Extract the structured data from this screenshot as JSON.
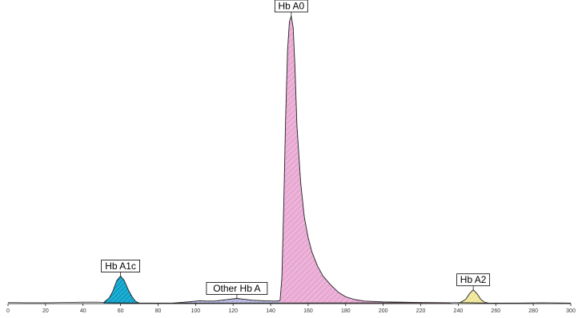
{
  "chart_data": {
    "type": "area",
    "title": "",
    "xlabel": "",
    "ylabel": "",
    "xlim": [
      0,
      300
    ],
    "ylim": [
      0,
      100
    ],
    "grid": false,
    "x_ticks": [
      0,
      20,
      40,
      60,
      80,
      100,
      120,
      140,
      160,
      180,
      200,
      220,
      240,
      260,
      280,
      300
    ],
    "series": [
      {
        "name": "Hb A1c",
        "color": "#1ab0d8",
        "points": [
          [
            51,
            0.4
          ],
          [
            54,
            2
          ],
          [
            56,
            4.5
          ],
          [
            58,
            8
          ],
          [
            60,
            9.6
          ],
          [
            62,
            8
          ],
          [
            64,
            5
          ],
          [
            66,
            2.5
          ],
          [
            68,
            0.8
          ],
          [
            70,
            0.2
          ]
        ]
      },
      {
        "name": "Other Hb A",
        "color": "#c0c0e6",
        "points": [
          [
            88,
            0.2
          ],
          [
            96,
            0.6
          ],
          [
            102,
            1.0
          ],
          [
            106,
            0.9
          ],
          [
            110,
            0.9
          ],
          [
            114,
            1.2
          ],
          [
            118,
            1.5
          ],
          [
            122,
            1.8
          ],
          [
            126,
            1.5
          ],
          [
            130,
            1.2
          ],
          [
            136,
            1.0
          ],
          [
            142,
            0.9
          ],
          [
            145,
            1.0
          ]
        ]
      },
      {
        "name": "Hb A0",
        "color": "#e8a8d2",
        "points": [
          [
            145,
            1.0
          ],
          [
            146,
            9
          ],
          [
            147,
            35
          ],
          [
            148,
            65
          ],
          [
            149,
            88
          ],
          [
            150,
            98
          ],
          [
            151,
            100
          ],
          [
            152,
            96
          ],
          [
            153,
            82
          ],
          [
            154,
            62
          ],
          [
            156,
            42
          ],
          [
            158,
            30
          ],
          [
            160,
            23
          ],
          [
            162,
            18
          ],
          [
            165,
            13
          ],
          [
            168,
            9.5
          ],
          [
            172,
            6.5
          ],
          [
            176,
            4
          ],
          [
            180,
            2.4
          ],
          [
            185,
            1.4
          ],
          [
            190,
            0.9
          ],
          [
            200,
            0.6
          ],
          [
            210,
            0.5
          ],
          [
            220,
            0.4
          ],
          [
            236,
            0.3
          ]
        ]
      },
      {
        "name": "Hb A2",
        "color": "#f4eca4",
        "points": [
          [
            241,
            0.4
          ],
          [
            244,
            1.5
          ],
          [
            246,
            3.5
          ],
          [
            248,
            4.8
          ],
          [
            250,
            3.5
          ],
          [
            252,
            1.5
          ],
          [
            254,
            0.5
          ],
          [
            256,
            0.2
          ]
        ]
      }
    ],
    "baseline": [
      [
        0,
        0.4
      ],
      [
        10,
        0.3
      ],
      [
        20,
        0.3
      ],
      [
        30,
        0.4
      ],
      [
        40,
        0.5
      ],
      [
        48,
        0.5
      ],
      [
        51,
        0.4
      ],
      [
        70,
        0.2
      ],
      [
        80,
        0.2
      ],
      [
        88,
        0.2
      ],
      [
        236,
        0.3
      ],
      [
        241,
        0.4
      ],
      [
        256,
        0.2
      ],
      [
        270,
        0.2
      ],
      [
        285,
        0.3
      ],
      [
        300,
        0.2
      ]
    ],
    "peak_labels": [
      {
        "text": "Hb A1c",
        "x": 60,
        "y": 9.6
      },
      {
        "text": "Other Hb A",
        "x": 122,
        "y": 1.8
      },
      {
        "text": "Hb A0",
        "x": 151,
        "y": 100
      },
      {
        "text": "Hb A2",
        "x": 248,
        "y": 4.8
      }
    ]
  }
}
